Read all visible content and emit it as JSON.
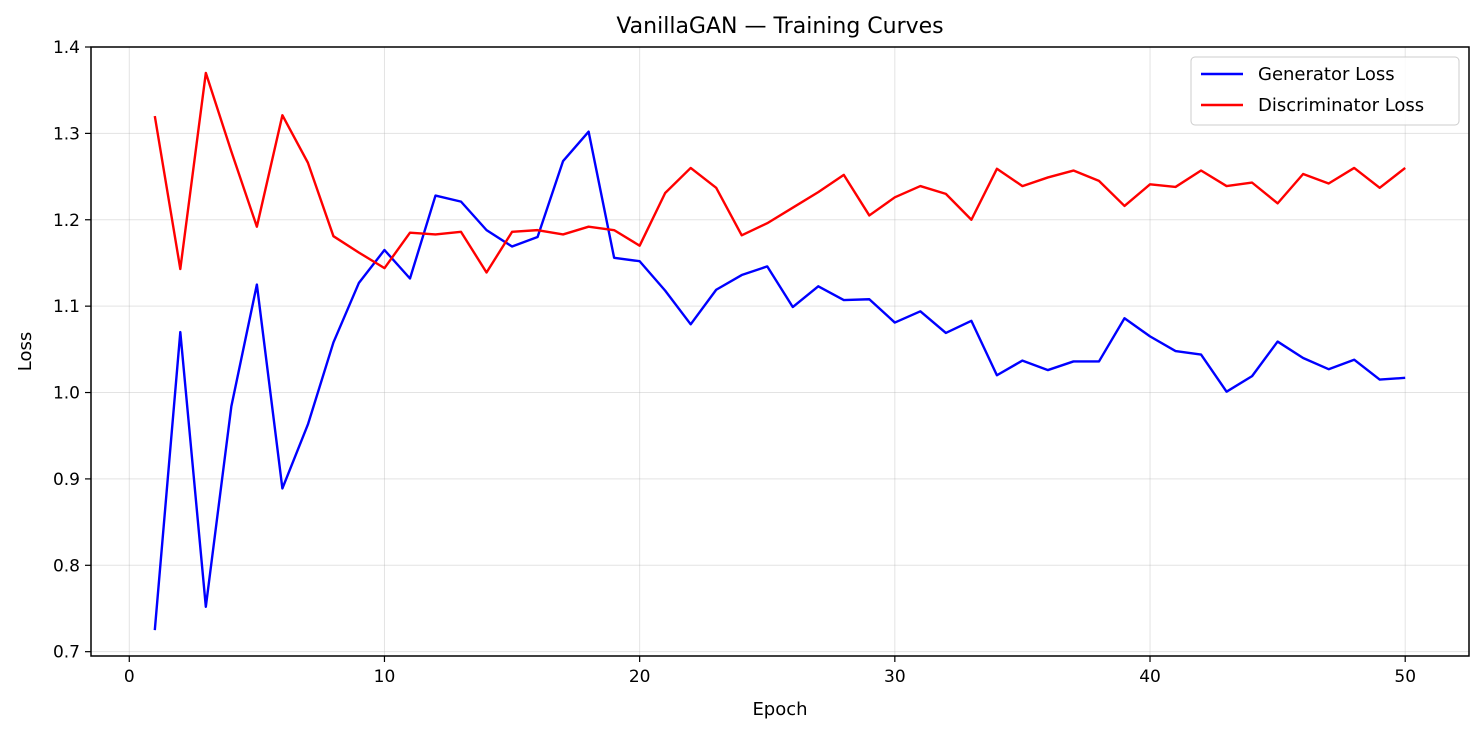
{
  "chart_data": {
    "type": "line",
    "title": "VanillaGAN — Training Curves",
    "xlabel": "Epoch",
    "ylabel": "Loss",
    "xlim": [
      -1.5,
      52.5
    ],
    "ylim": [
      0.695,
      1.4
    ],
    "x_ticks": [
      0,
      10,
      20,
      30,
      40,
      50
    ],
    "y_ticks": [
      0.7,
      0.8,
      0.9,
      1.0,
      1.1,
      1.2,
      1.3,
      1.4
    ],
    "x_tick_labels": [
      "0",
      "10",
      "20",
      "30",
      "40",
      "50"
    ],
    "y_tick_labels": [
      "0.7",
      "0.8",
      "0.9",
      "1.0",
      "1.1",
      "1.2",
      "1.3",
      "1.4"
    ],
    "grid": true,
    "legend_position": "top-right",
    "x": [
      1,
      2,
      3,
      4,
      5,
      6,
      7,
      8,
      9,
      10,
      11,
      12,
      13,
      14,
      15,
      16,
      17,
      18,
      19,
      20,
      21,
      22,
      23,
      24,
      25,
      26,
      27,
      28,
      29,
      30,
      31,
      32,
      33,
      34,
      35,
      36,
      37,
      38,
      39,
      40,
      41,
      42,
      43,
      44,
      45,
      46,
      47,
      48,
      49,
      50
    ],
    "series": [
      {
        "name": "Generator Loss",
        "color": "#0000ff",
        "values": [
          0.725,
          1.07,
          0.752,
          0.984,
          1.125,
          0.889,
          0.963,
          1.058,
          1.127,
          1.165,
          1.132,
          1.228,
          1.221,
          1.188,
          1.169,
          1.18,
          1.268,
          1.302,
          1.156,
          1.152,
          1.118,
          1.079,
          1.119,
          1.136,
          1.146,
          1.099,
          1.123,
          1.107,
          1.108,
          1.081,
          1.094,
          1.069,
          1.083,
          1.02,
          1.037,
          1.026,
          1.036,
          1.036,
          1.086,
          1.065,
          1.048,
          1.044,
          1.001,
          1.019,
          1.059,
          1.04,
          1.027,
          1.038,
          1.015,
          1.017
        ]
      },
      {
        "name": "Discriminator Loss",
        "color": "#ff0000",
        "values": [
          1.32,
          1.143,
          1.37,
          1.279,
          1.192,
          1.321,
          1.266,
          1.181,
          1.162,
          1.144,
          1.185,
          1.183,
          1.186,
          1.139,
          1.186,
          1.188,
          1.183,
          1.192,
          1.188,
          1.17,
          1.231,
          1.26,
          1.237,
          1.182,
          1.196,
          1.214,
          1.232,
          1.252,
          1.205,
          1.226,
          1.239,
          1.23,
          1.2,
          1.259,
          1.239,
          1.249,
          1.257,
          1.245,
          1.216,
          1.241,
          1.238,
          1.257,
          1.239,
          1.243,
          1.219,
          1.253,
          1.242,
          1.26,
          1.237,
          1.26
        ]
      }
    ]
  }
}
